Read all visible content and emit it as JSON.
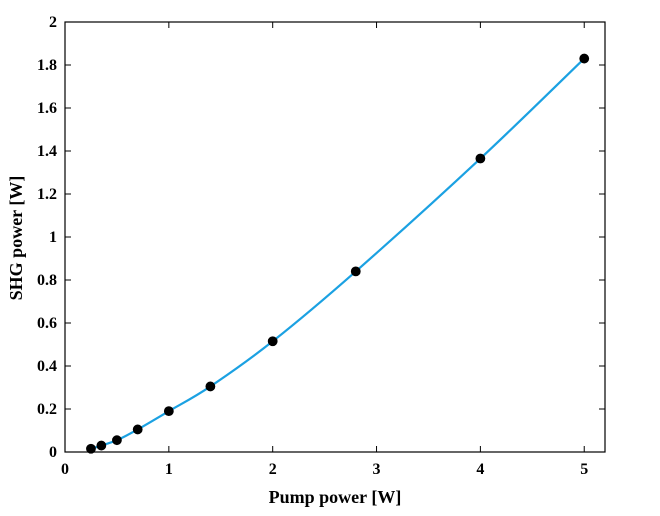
{
  "chart_data": {
    "type": "line",
    "title": "",
    "xlabel": "Pump power [W]",
    "ylabel": "SHG power [W]",
    "xlim": [
      0,
      5.2
    ],
    "ylim": [
      0,
      2
    ],
    "x_ticks": [
      0,
      1,
      2,
      3,
      4,
      5
    ],
    "x_tick_labels": [
      "0",
      "1",
      "2",
      "3",
      "4",
      "5"
    ],
    "y_ticks": [
      0,
      0.2,
      0.4,
      0.6,
      0.8,
      1,
      1.2,
      1.4,
      1.6,
      1.8,
      2
    ],
    "y_tick_labels": [
      "0",
      "0.2",
      "0.4",
      "0.6",
      "0.8",
      "1",
      "1.2",
      "1.4",
      "1.6",
      "1.8",
      "2"
    ],
    "grid": false,
    "legend": "none",
    "series": [
      {
        "type": "scatter",
        "color": "#000000",
        "x": [
          0.25,
          0.35,
          0.5,
          0.7,
          1.0,
          1.4,
          2.0,
          2.8,
          4.0,
          5.0
        ],
        "y": [
          0.015,
          0.03,
          0.055,
          0.105,
          0.19,
          0.305,
          0.515,
          0.84,
          1.365,
          1.83
        ]
      },
      {
        "type": "line",
        "color": "#1ba1e2",
        "x": [
          0.25,
          0.35,
          0.5,
          0.7,
          1.0,
          1.4,
          2.0,
          2.8,
          4.0,
          5.0
        ],
        "y": [
          0.015,
          0.03,
          0.055,
          0.105,
          0.19,
          0.305,
          0.515,
          0.84,
          1.365,
          1.83
        ]
      }
    ]
  }
}
